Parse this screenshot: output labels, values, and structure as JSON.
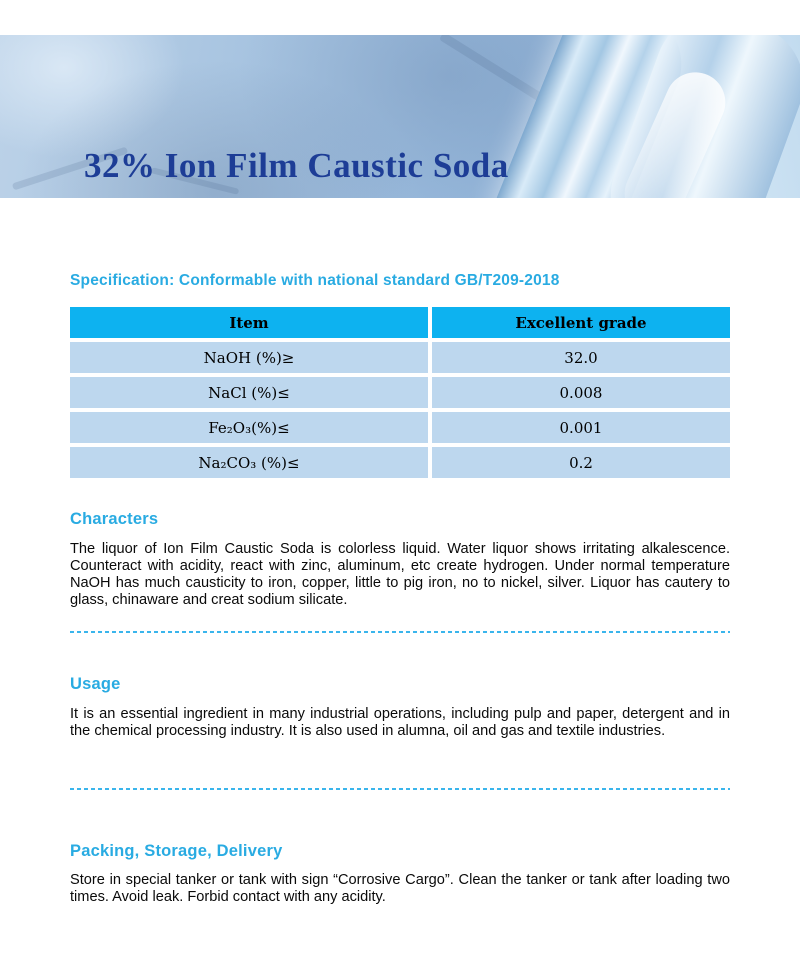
{
  "banner": {
    "title": "32% Ion Film Caustic Soda"
  },
  "spec": {
    "heading": "Specification: Conformable with national standard GB/T209-2018"
  },
  "table": {
    "headers": [
      "Item",
      "Excellent grade"
    ],
    "rows": [
      {
        "item": "NaOH (%)≥",
        "value": "32.0"
      },
      {
        "item": "NaCl (%)≤",
        "value": "0.008"
      },
      {
        "item": "Fe₂O₃(%)≤",
        "value": "0.001"
      },
      {
        "item": "Na₂CO₃ (%)≤",
        "value": "0.2"
      }
    ]
  },
  "sections": [
    {
      "heading": "Characters",
      "body": "The liquor of Ion Film Caustic Soda is colorless liquid. Water liquor shows irritating alkalescence. Counteract with acidity, react with zinc, aluminum, etc create hydrogen. Under normal temperature NaOH has much causticity to iron, copper, little to pig iron, no to nickel, silver. Liquor has cautery to glass, chinaware and creat sodium silicate."
    },
    {
      "heading": "Usage",
      "body": "It is an essential ingredient in many industrial operations, including pulp and paper, detergent and in the chemical processing industry. It is also used in alumna, oil and gas and textile industries."
    },
    {
      "heading": "Packing, Storage, Delivery",
      "body": "Store in special tanker or tank with sign “Corrosive Cargo”. Clean the tanker or tank after loading two times. Avoid leak. Forbid contact with any acidity."
    }
  ],
  "colors": {
    "heading_cyan": "#29abe2",
    "table_header_cyan": "#0db2f0",
    "table_row_blue": "#bdd7ee",
    "title_navy": "#1d3d96",
    "banner_blue": "#9cbbdc"
  }
}
